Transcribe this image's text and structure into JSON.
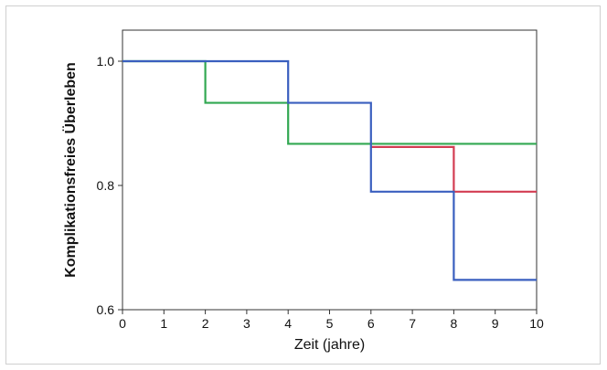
{
  "chart_data": {
    "type": "line",
    "step": true,
    "title": "",
    "xlabel": "Zeit (jahre)",
    "ylabel": "Komplikationsfreies Überleben",
    "xlim": [
      0,
      10
    ],
    "ylim": [
      0.6,
      1.05
    ],
    "xticks": [
      "0",
      "1",
      "2",
      "3",
      "4",
      "5",
      "6",
      "7",
      "8",
      "9",
      "10"
    ],
    "yticks": [
      "0.6",
      "0.8",
      "1.0"
    ],
    "grid": false,
    "series": [
      {
        "color": "#32a852",
        "x": [
          0,
          2,
          2,
          4,
          4,
          10
        ],
        "y": [
          1.0,
          1.0,
          0.933,
          0.933,
          0.867,
          0.867
        ]
      },
      {
        "color": "#d33c52",
        "x": [
          6,
          8,
          8,
          10
        ],
        "y": [
          0.862,
          0.862,
          0.79,
          0.79
        ]
      },
      {
        "color": "#3a5fbf",
        "x": [
          0,
          4,
          4,
          6,
          6,
          8,
          8,
          10
        ],
        "y": [
          1.0,
          1.0,
          0.933,
          0.933,
          0.79,
          0.79,
          0.648,
          0.648
        ]
      }
    ]
  }
}
